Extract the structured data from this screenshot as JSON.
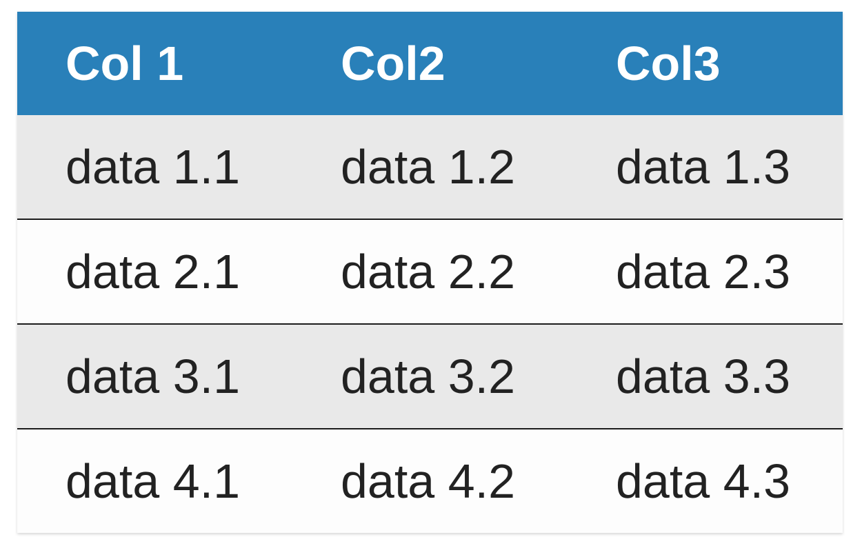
{
  "chart_data": {
    "type": "table",
    "columns": [
      "Col 1",
      "Col2",
      "Col3"
    ],
    "rows": [
      [
        "data 1.1",
        "data 1.2",
        "data 1.3"
      ],
      [
        "data 2.1",
        "data 2.2",
        "data 2.3"
      ],
      [
        "data 3.1",
        "data 3.2",
        "data 3.3"
      ],
      [
        "data 4.1",
        "data 4.2",
        "data 4.3"
      ]
    ]
  },
  "colors": {
    "header_bg": "#2980b9",
    "header_text": "#ffffff",
    "stripe_row_bg": "#e9e9e9",
    "plain_row_bg": "#fdfdfd",
    "row_divider": "#1c1c1c",
    "cell_text": "#222222",
    "page_bg": "#ffffff"
  }
}
